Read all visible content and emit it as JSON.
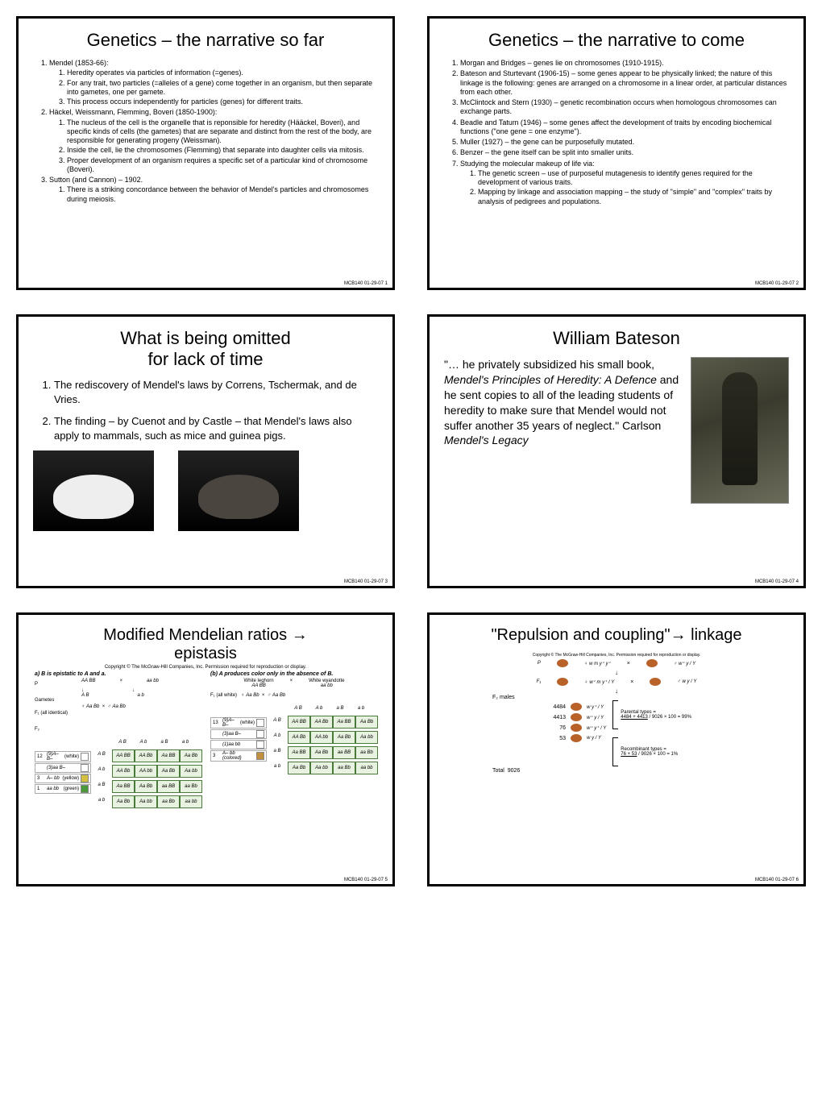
{
  "footer_code": "MCB140 01-29-07",
  "slides": {
    "s1": {
      "title": "Genetics – the narrative so far",
      "items": [
        {
          "label": "Mendel (1853-66):",
          "subs": [
            "Heredity operates via particles of information (=genes).",
            "For any trait, two particles (=alleles of a gene) come together in an organism, but then separate into gametes, one per gamete.",
            "This process occurs independently for particles (genes) for different traits."
          ]
        },
        {
          "label": "Häckel, Weissmann, Flemming, Boveri (1850-1900):",
          "subs": [
            "The nucleus of the cell is the organelle that is reponsible for heredity (Hääckel, Boveri), and specific kinds of cells (the gametes) that are separate and distinct from the rest of the body, are responsible for generating progeny (Weissman).",
            "Inside the cell, lie the chromosomes (Flemming) that separate into daughter cells via mitosis.",
            "Proper development of an organism requires a specific set of a particular kind of chromosome (Boveri)."
          ]
        },
        {
          "label": "Sutton (and Cannon) – 1902.",
          "subs": [
            "There is a striking concordance between the behavior of Mendel's particles and chromosomes during meiosis."
          ]
        }
      ],
      "page": "1"
    },
    "s2": {
      "title": "Genetics – the narrative to come",
      "items": [
        {
          "label": "Morgan and Bridges – genes lie on chromosomes (1910-1915)."
        },
        {
          "label": "Bateson and  Sturtevant (1906-15) – some genes appear to be physically linked; the nature of this linkage is the following: genes are arranged on a chromosome in a linear order, at particular distances from each other."
        },
        {
          "label": "McClintock and Stern (1930) – genetic recombination occurs when homologous chromosomes can exchange parts."
        },
        {
          "label": "Beadle and Tatum (1946) – some genes affect the development of traits by encoding biochemical functions (\"one gene = one enzyme\")."
        },
        {
          "label": "Muller (1927) – the gene can be purposefully mutated."
        },
        {
          "label": "Benzer – the gene itself can be split into smaller units."
        },
        {
          "label": "Studying the molecular makeup of life via:",
          "subs": [
            "The genetic screen – use of purposeful mutagenesis to identify genes required for the development of various traits.",
            "Mapping by linkage and association mapping – the study of \"simple\" and \"complex\" traits by analysis of pedigrees and populations."
          ]
        }
      ],
      "page": "2"
    },
    "s3": {
      "title_l1": "What is being omitted",
      "title_l2": "for lack of time",
      "items": [
        "The rediscovery of Mendel's laws by Correns, Tschermak, and de Vries.",
        "The finding – by Cuenot and by Castle – that Mendel's laws also apply to mammals, such as mice and guinea pigs."
      ],
      "page": "3"
    },
    "s4": {
      "title": "William Bateson",
      "body": "\"…  he privately subsidized his small book, Mendel's Principles of Heredity: A Defence and he sent copies to all of the leading students of heredity to make sure that Mendel would not suffer another 35 years of neglect.\" Carlson Mendel's Legacy",
      "body_parts": {
        "quote_open": "\"…  he privately subsidized his small book, ",
        "book_title": "Mendel's Principles of Heredity: A Defence",
        "quote_mid": " and he sent copies to all of the leading students of heredity to make sure that Mendel would not suffer another 35 years of neglect.\" Carlson ",
        "source": "Mendel's Legacy"
      },
      "page": "4"
    },
    "s5": {
      "title_l1": "Modified Mendelian ratios →",
      "title_l2": "epistasis",
      "copyright": "Copyright © The McGraw-Hill Companies, Inc. Permission required for reproduction or display.",
      "panel_a_caption": "a)  B is epistatic to A and a.",
      "panel_b_caption": "(b)  A produces color only in the absence of B.",
      "parent_labels": {
        "P": "P",
        "Gametes": "Gametes",
        "F1": "F₁ (all identical)",
        "F2": "F₂",
        "F1b": "F₁ (all white)"
      },
      "genotypes": {
        "p1": "AA BB",
        "p2": "aa bb",
        "g1": "A B",
        "g2": "a b",
        "f1": "Aa Bb"
      },
      "headers": {
        "white_leghorn": "White leghorn",
        "white_wyandotte": "White wyandotte"
      },
      "punnett_headers": [
        "A B",
        "A b",
        "a B",
        "a b"
      ],
      "punnett_a": [
        [
          "AA BB",
          "AA Bb",
          "Aa BB",
          "Aa Bb"
        ],
        [
          "AA Bb",
          "AA bb",
          "Aa Bb",
          "Aa bb"
        ],
        [
          "Aa BB",
          "Aa Bb",
          "aa BB",
          "aa Bb"
        ],
        [
          "Aa Bb",
          "Aa bb",
          "aa Bb",
          "aa bb"
        ]
      ],
      "punnett_b": [
        [
          "AA BB",
          "AA Bb",
          "Aa BB",
          "Aa Bb"
        ],
        [
          "AA Bb",
          "AA bb",
          "Aa Bb",
          "Aa bb"
        ],
        [
          "Aa BB",
          "Aa Bb",
          "aa BB",
          "aa Bb"
        ],
        [
          "Aa Bb",
          "Aa bb",
          "aa Bb",
          "aa bb"
        ]
      ],
      "legend_a": [
        {
          "n": "12",
          "g": "(9)A– B–",
          "p": "(white)",
          "c": "#ffffff"
        },
        {
          "n": "",
          "g": "(3)aa B–",
          "p": "",
          "c": "#ffffff"
        },
        {
          "n": "3",
          "g": "A– bb",
          "p": "(yellow)",
          "c": "#d4c040"
        },
        {
          "n": "1",
          "g": "aa bb",
          "p": "(green)",
          "c": "#4a9a3a"
        }
      ],
      "legend_b": [
        {
          "n": "13",
          "g": "(9)A– B–",
          "p": "(white)",
          "c": "#ffffff"
        },
        {
          "n": "",
          "g": "(3)aa B–",
          "p": "",
          "c": "#ffffff"
        },
        {
          "n": "",
          "g": "(1)aa bb",
          "p": "",
          "c": "#ffffff"
        },
        {
          "n": "3",
          "g": "A– bb (colored)",
          "p": "",
          "c": "#c09040"
        }
      ],
      "colors": {
        "green": "#4a9a3a",
        "yellow": "#d4c040",
        "brown": "#c09040",
        "white": "#ffffff",
        "grid": "#4a7a3a"
      },
      "page": "5"
    },
    "s6": {
      "title": "\"Repulsion and coupling\"→ linkage",
      "copyright": "Copyright © The McGraw-Hill Companies, Inc. Permission required for reproduction or display.",
      "cross_labels": {
        "P": "P",
        "F1": "F₁",
        "F2": "F₂ males"
      },
      "p_female": "♀ w m y⁺ y⁺",
      "p_male": "♂ w⁺ y / Y",
      "f1_female": "♀ w⁺ m y⁺ / Y",
      "f1_male": "♂ w y / Y",
      "results": [
        {
          "count": "4484",
          "geno": "w y⁺ / Y"
        },
        {
          "count": "4413",
          "geno": "w⁺ y / Y"
        },
        {
          "count": "76",
          "geno": "w⁺ y⁺ / Y"
        },
        {
          "count": "53",
          "geno": "w y / Y"
        }
      ],
      "total_label": "Total",
      "total": "9026",
      "parental_label": "Parental types =",
      "parental_calc": "4484 + 4413 / 9026 × 100 = 99%",
      "parental_frac_num": "4484 + 4413",
      "parental_frac_den": "9026",
      "parental_result": " × 100 = 99%",
      "recomb_label": "Recombinant types =",
      "recomb_frac_num": "76 + 53",
      "recomb_frac_den": "9026",
      "recomb_result": " × 100 = 1%",
      "page": "6"
    }
  }
}
